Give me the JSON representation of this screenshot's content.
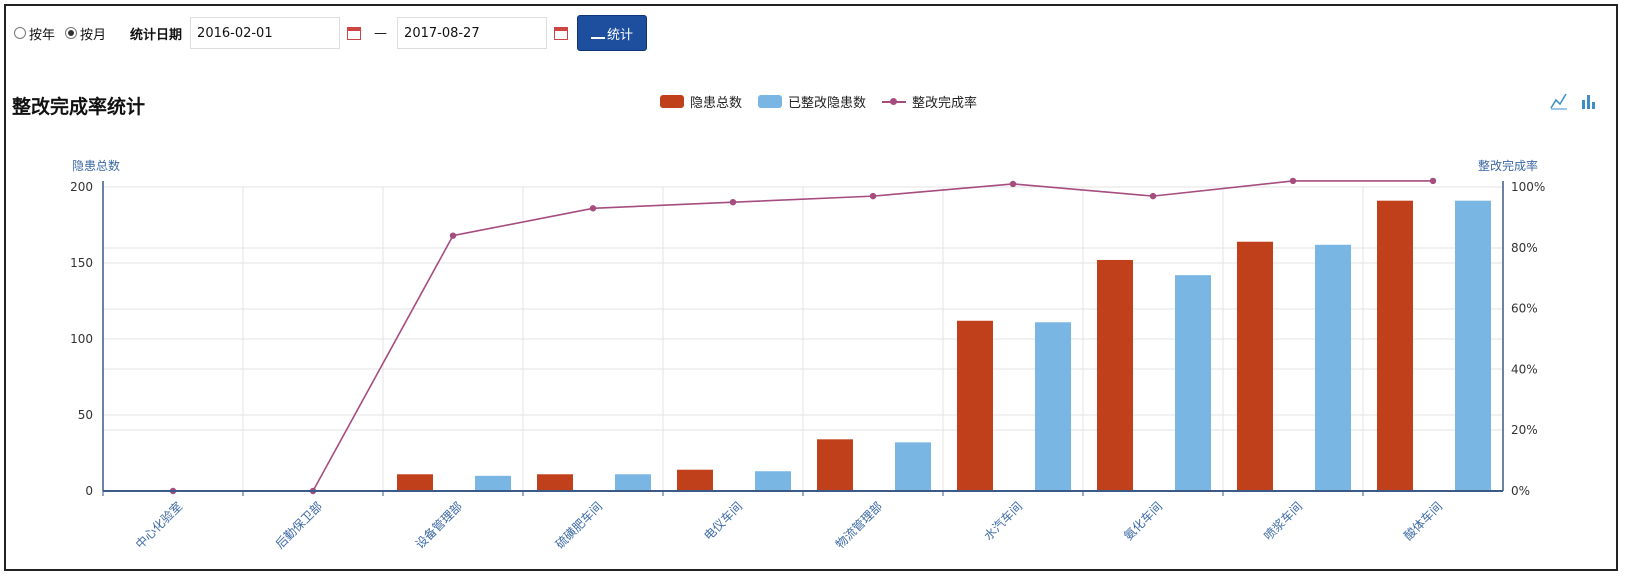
{
  "toolbar": {
    "radio_year": "按年",
    "radio_month": "按月",
    "date_label": "统计日期",
    "start_date": "2016-02-01",
    "separator": "—",
    "end_date": "2017-08-27",
    "button_label": "统计"
  },
  "chart_data": {
    "type": "bar",
    "title": "整改完成率统计",
    "ylabel": "隐患总数",
    "ylabel_right": "整改完成率",
    "ylim": [
      0,
      200
    ],
    "ylim_right": [
      0,
      100
    ],
    "yticks": [
      "0",
      "50",
      "100",
      "150",
      "200"
    ],
    "yticks_right": [
      "0%",
      "20%",
      "40%",
      "60%",
      "80%",
      "100%"
    ],
    "categories": [
      "中心化验室",
      "后勤保卫部",
      "设备管理部",
      "硫磺肥车间",
      "电仪车间",
      "物流管理部",
      "水汽车间",
      "氨化车间",
      "喷浆车间",
      "酸体车间"
    ],
    "series": [
      {
        "name": "隐患总数",
        "type": "bar",
        "axis": "left",
        "values": [
          0,
          0,
          11,
          11,
          14,
          34,
          112,
          152,
          164,
          191
        ]
      },
      {
        "name": "已整改隐患数",
        "type": "bar",
        "axis": "left",
        "values": [
          0,
          0,
          10,
          11,
          13,
          32,
          111,
          142,
          162,
          191
        ]
      },
      {
        "name": "整改完成率",
        "type": "line",
        "axis": "right",
        "values": [
          0,
          0,
          84,
          93,
          95,
          97,
          101,
          97,
          102,
          102
        ]
      }
    ],
    "colors": {
      "bar1": "#c0401c",
      "bar2": "#7ab6e3",
      "line": "#a64c7f",
      "grid": "#e3e3e3",
      "axis": "#3b5a87"
    },
    "legend_position": "top-center"
  }
}
